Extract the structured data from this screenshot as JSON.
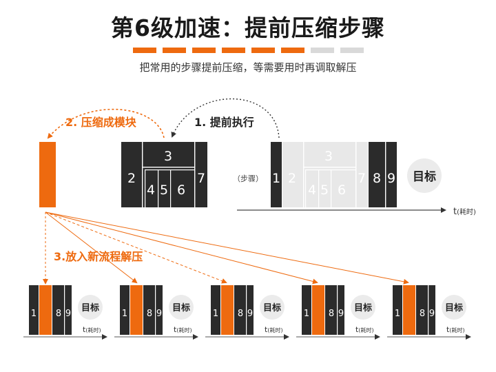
{
  "title": "第6级加速：提前压缩步骤",
  "subtitle": "把常用的步骤提前压缩，等需要用时再调取解压",
  "progress": {
    "filled": 6,
    "total": 8,
    "filled_color": "#ee6a0f",
    "empty_color": "#d9d9d9"
  },
  "colors": {
    "accent": "#ee6a0f",
    "dark": "#2b2b2b",
    "light": "#e8e8e8"
  },
  "labels": {
    "step1": "1. 提前执行",
    "step2": "2. 压缩成模块",
    "step3": "3.放入新流程解压",
    "steps_tag": "（步骤）",
    "goal": "目标",
    "t": "t",
    "t_unit": "(耗时)"
  },
  "precompute_block": {
    "top": "3",
    "left": "2",
    "right": "7",
    "bottom": [
      "4",
      "5",
      "6"
    ]
  },
  "timeline": {
    "steps": [
      "1",
      "2",
      "3",
      "4",
      "5",
      "6",
      "7",
      "8",
      "9"
    ]
  },
  "mini": {
    "left": "1",
    "right": [
      "8",
      "9"
    ],
    "count": 5
  }
}
